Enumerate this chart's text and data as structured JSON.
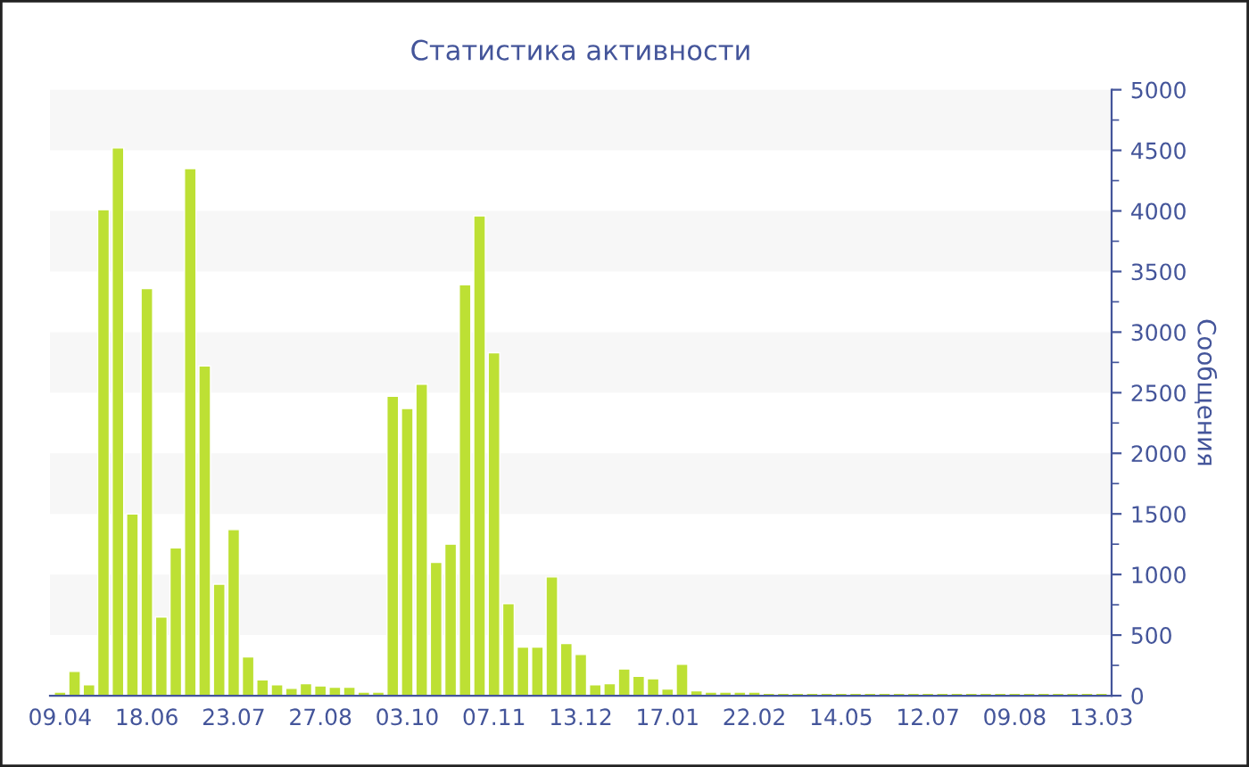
{
  "chart_data": {
    "type": "bar",
    "title": "Статистика активности",
    "ylabel": "Сообщения",
    "categories": [
      "09.04",
      null,
      null,
      null,
      null,
      null,
      "18.06",
      null,
      null,
      null,
      null,
      null,
      "23.07",
      null,
      null,
      null,
      null,
      null,
      "27.08",
      null,
      null,
      null,
      null,
      null,
      "03.10",
      null,
      null,
      null,
      null,
      null,
      "07.11",
      null,
      null,
      null,
      null,
      null,
      "13.12",
      null,
      null,
      null,
      null,
      null,
      "17.01",
      null,
      null,
      null,
      null,
      null,
      "22.02",
      null,
      null,
      null,
      null,
      null,
      "14.05",
      null,
      null,
      null,
      null,
      null,
      "12.07",
      null,
      null,
      null,
      null,
      null,
      "09.08",
      null,
      null,
      null,
      null,
      null,
      "13.03"
    ],
    "values": [
      30,
      200,
      90,
      4010,
      4520,
      1500,
      3360,
      650,
      1220,
      4350,
      2720,
      920,
      1370,
      320,
      130,
      90,
      60,
      100,
      80,
      70,
      70,
      30,
      30,
      2470,
      2370,
      2570,
      1100,
      1250,
      3390,
      3960,
      2830,
      760,
      400,
      400,
      980,
      430,
      340,
      90,
      100,
      220,
      160,
      140,
      55,
      260,
      40,
      30,
      30,
      30,
      30,
      20,
      20,
      20,
      20,
      20,
      20,
      20,
      20,
      20,
      20,
      20,
      20,
      20,
      20,
      20,
      20,
      20,
      20,
      20,
      20,
      20,
      20,
      20,
      20
    ],
    "color": "#bde034",
    "ylim": [
      0,
      5000
    ],
    "yticks": [
      0,
      500,
      1000,
      1500,
      2000,
      2500,
      3000,
      3500,
      4000,
      4500,
      5000
    ],
    "bands": [
      {
        "axis": "y",
        "from": 500,
        "to": 1000,
        "color": "#f7f7f7"
      },
      {
        "axis": "y",
        "from": 1500,
        "to": 2000,
        "color": "#f7f7f7"
      },
      {
        "axis": "y",
        "from": 2500,
        "to": 3000,
        "color": "#f7f7f7"
      },
      {
        "axis": "y",
        "from": 3500,
        "to": 4000,
        "color": "#f7f7f7"
      },
      {
        "axis": "y",
        "from": 4500,
        "to": 5000,
        "color": "#f7f7f7"
      }
    ],
    "grid": false,
    "legend": false
  }
}
